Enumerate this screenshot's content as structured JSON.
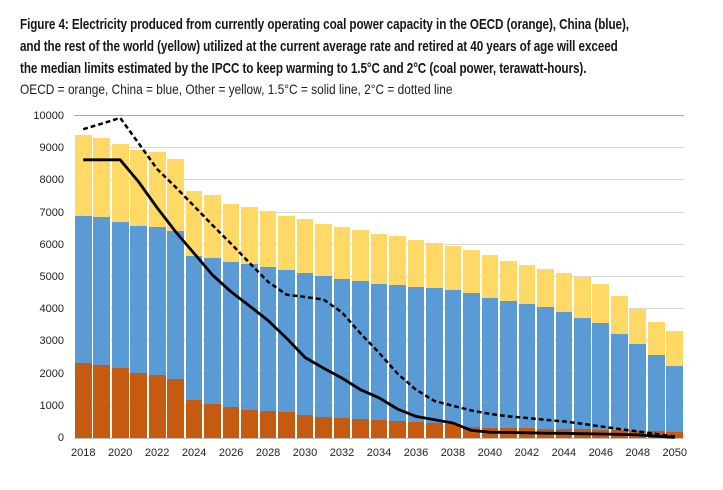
{
  "header": {
    "title_lines": [
      "Figure 4: Electricity produced from currently operating coal power capacity in the OECD (orange), China (blue),",
      "and the rest of the world (yellow) utilized at the current average rate and retired at 40 years of age will exceed",
      "the median limits estimated by the IPCC to keep warming to 1.5°C and 2°C (coal power, terawatt-hours)."
    ],
    "legend_note": "OECD = orange, China = blue, Other = yellow, 1.5°C = solid line, 2°C = dotted line"
  },
  "chart_data": {
    "type": "bar",
    "stacked": true,
    "title": "Figure 4: Electricity produced from currently operating coal power capacity in the OECD (orange), China (blue), and the rest of the world (yellow) utilized at the current average rate and retired at 40 years of age will exceed the median limits estimated by the IPCC to keep warming to 1.5°C and 2°C (coal power, terawatt-hours).",
    "units": "terawatt-hours",
    "grid": "horizontal",
    "legend_position": "none",
    "ylim": [
      0,
      10000
    ],
    "y_tick_step": 1000,
    "y_tick_labels": [
      "0",
      "1000",
      "2000",
      "3000",
      "4000",
      "5000",
      "6000",
      "7000",
      "8000",
      "9000",
      "10000"
    ],
    "x_tick_labels": [
      "2018",
      "2020",
      "2022",
      "2024",
      "2026",
      "2028",
      "2030",
      "2032",
      "2034",
      "2036",
      "2038",
      "2040",
      "2042",
      "2044",
      "2046",
      "2048",
      "2050"
    ],
    "categories": [
      2018,
      2019,
      2020,
      2021,
      2022,
      2023,
      2024,
      2025,
      2026,
      2027,
      2028,
      2029,
      2030,
      2031,
      2032,
      2033,
      2034,
      2035,
      2036,
      2037,
      2038,
      2039,
      2040,
      2041,
      2042,
      2043,
      2044,
      2045,
      2046,
      2047,
      2048,
      2049,
      2050
    ],
    "series": [
      {
        "name": "OECD",
        "color": "#C55A11",
        "values": [
          2330,
          2270,
          2160,
          2030,
          1960,
          1830,
          1170,
          1060,
          950,
          875,
          825,
          795,
          720,
          650,
          620,
          590,
          565,
          515,
          485,
          465,
          420,
          330,
          320,
          310,
          300,
          290,
          280,
          265,
          250,
          235,
          225,
          210,
          195
        ]
      },
      {
        "name": "China",
        "color": "#5B9BD5",
        "values": [
          4570,
          4590,
          4550,
          4560,
          4580,
          4590,
          4480,
          4530,
          4520,
          4515,
          4475,
          4435,
          4420,
          4380,
          4320,
          4280,
          4225,
          4225,
          4215,
          4195,
          4170,
          4160,
          4015,
          3950,
          3860,
          3765,
          3640,
          3450,
          3310,
          2985,
          2685,
          2370,
          2055
        ]
      },
      {
        "name": "Other",
        "color": "#FFD966",
        "values": [
          2500,
          2450,
          2430,
          2370,
          2330,
          2230,
          2020,
          1950,
          1790,
          1780,
          1750,
          1670,
          1650,
          1620,
          1600,
          1580,
          1560,
          1520,
          1450,
          1390,
          1360,
          1340,
          1335,
          1240,
          1210,
          1195,
          1210,
          1275,
          1230,
          1180,
          1110,
          1030,
          1060
        ]
      }
    ],
    "lines": [
      {
        "name": "1.5°C median limit",
        "style": "solid",
        "color": "#000000",
        "values": [
          8640,
          8640,
          8640,
          7950,
          7150,
          6400,
          5730,
          5060,
          4540,
          4100,
          3650,
          3100,
          2500,
          2170,
          1860,
          1500,
          1250,
          900,
          670,
          565,
          465,
          235,
          180,
          170,
          160,
          150,
          145,
          135,
          125,
          115,
          95,
          60,
          20
        ]
      },
      {
        "name": "2°C median limit",
        "style": "dotted",
        "color": "#000000",
        "values": [
          9590,
          9760,
          9940,
          9150,
          8350,
          7790,
          7200,
          6605,
          6035,
          5435,
          4850,
          4450,
          4380,
          4300,
          3900,
          3250,
          2650,
          2000,
          1500,
          1150,
          1000,
          855,
          750,
          670,
          620,
          565,
          515,
          440,
          360,
          280,
          205,
          125,
          50
        ]
      }
    ],
    "colors": {
      "gridline": "#D9D9D9",
      "gridline_top": "#A6A6A6",
      "baseline": "#BFBFBF",
      "axis_text": "#222222"
    }
  }
}
